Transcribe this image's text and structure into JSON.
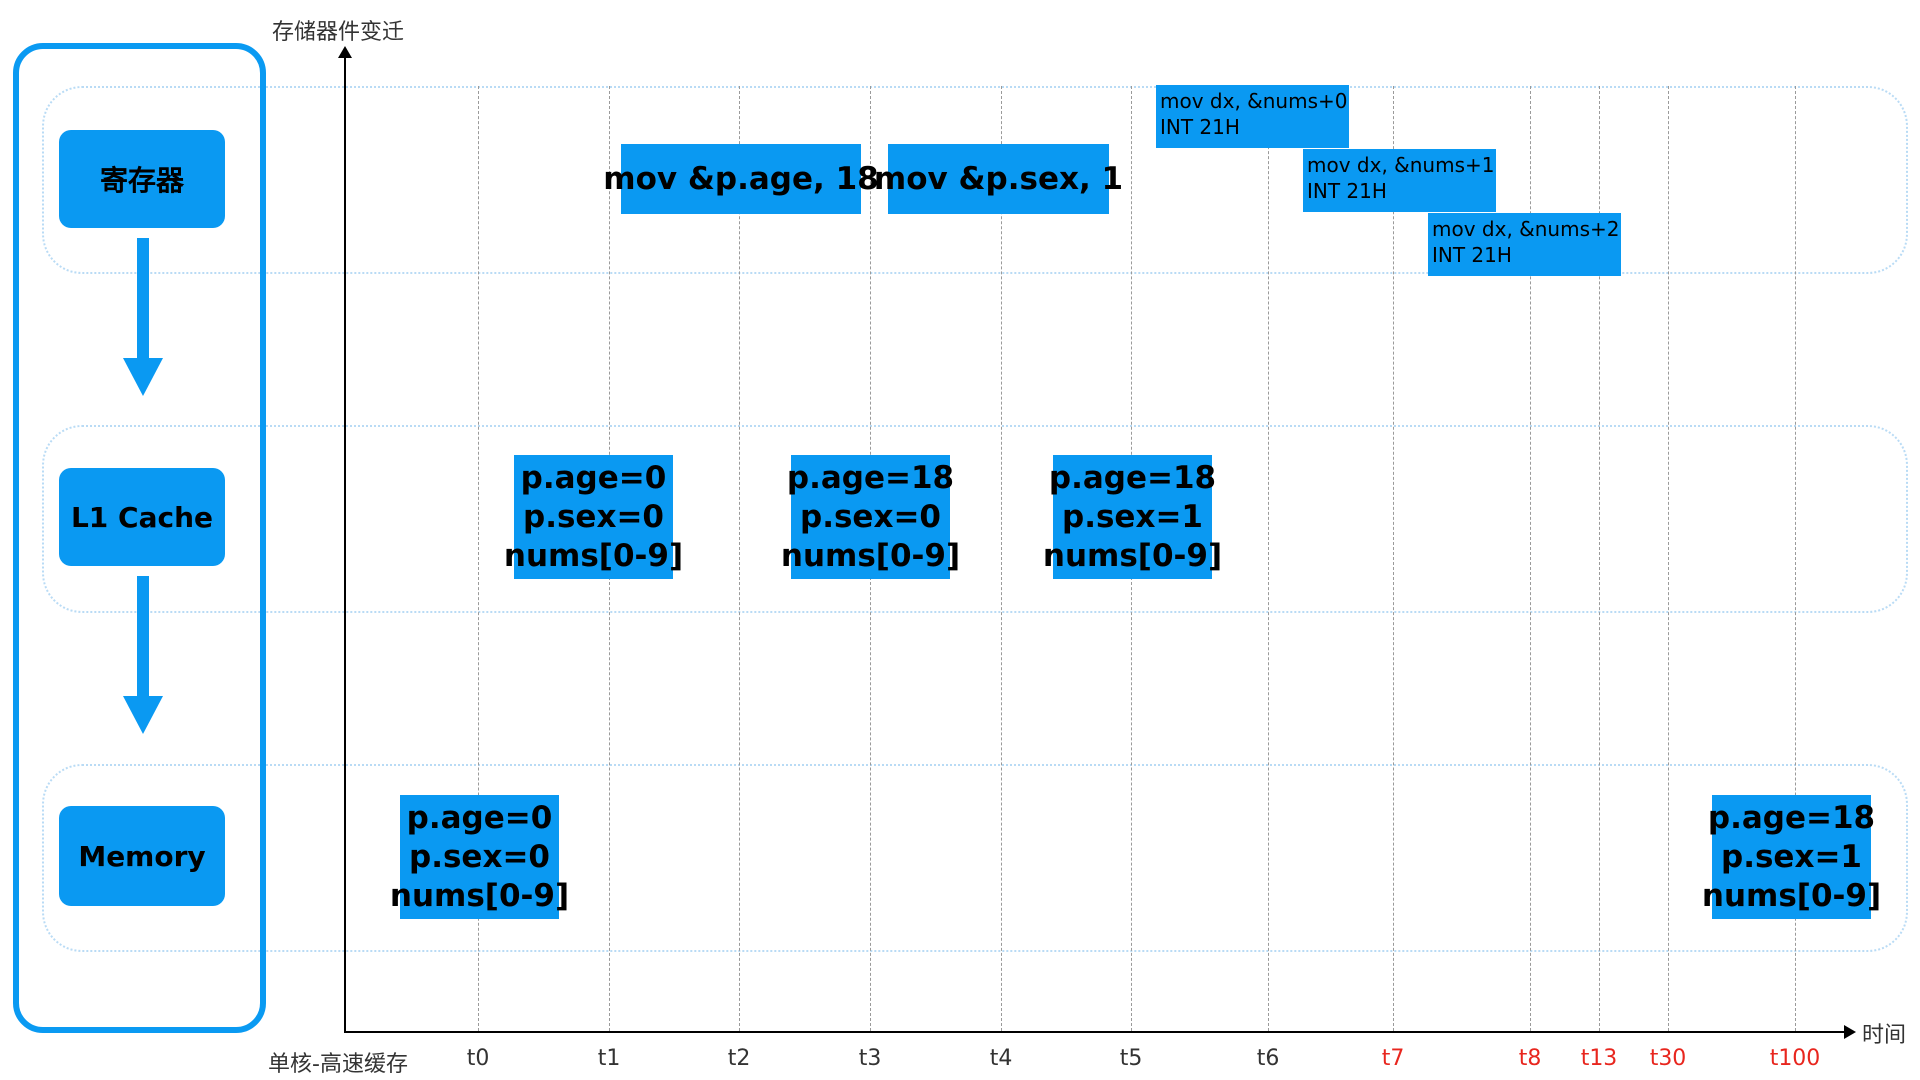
{
  "axes": {
    "y_label": "存储器件变迁",
    "x_label": "时间",
    "origin_label": "单核-高速缓存"
  },
  "stores": {
    "register": "寄存器",
    "l1": "L1 Cache",
    "memory": "Memory"
  },
  "ticks": [
    {
      "label": "t0",
      "highlight": false
    },
    {
      "label": "t1",
      "highlight": false
    },
    {
      "label": "t2",
      "highlight": false
    },
    {
      "label": "t3",
      "highlight": false
    },
    {
      "label": "t4",
      "highlight": false
    },
    {
      "label": "t5",
      "highlight": false
    },
    {
      "label": "t6",
      "highlight": false
    },
    {
      "label": "t7",
      "highlight": true
    },
    {
      "label": "t8",
      "highlight": true
    },
    {
      "label": "t13",
      "highlight": true
    },
    {
      "label": "t30",
      "highlight": true
    },
    {
      "label": "t100",
      "highlight": true
    }
  ],
  "instructions": {
    "set_age": "mov &p.age, 18",
    "set_sex": "mov &p.sex, 1",
    "print0": {
      "line1": "mov dx, &nums+0",
      "line2": "INT 21H"
    },
    "print1": {
      "line1": "mov dx, &nums+1",
      "line2": "INT 21H"
    },
    "print2": {
      "line1": "mov dx, &nums+2",
      "line2": "INT 21H"
    }
  },
  "states": {
    "mem_t0": {
      "age": "p.age=0",
      "sex": "p.sex=0",
      "nums": "nums[0-9]"
    },
    "l1_t1": {
      "age": "p.age=0",
      "sex": "p.sex=0",
      "nums": "nums[0-9]"
    },
    "l1_t3": {
      "age": "p.age=18",
      "sex": "p.sex=0",
      "nums": "nums[0-9]"
    },
    "l1_t5": {
      "age": "p.age=18",
      "sex": "p.sex=1",
      "nums": "nums[0-9]"
    },
    "mem_t100": {
      "age": "p.age=18",
      "sex": "p.sex=1",
      "nums": "nums[0-9]"
    }
  },
  "colors": {
    "box_fill": "#0a99f2",
    "frame": "#0a9af2",
    "band": "#b9dbf5",
    "highlight_tick": "#e8261e"
  }
}
